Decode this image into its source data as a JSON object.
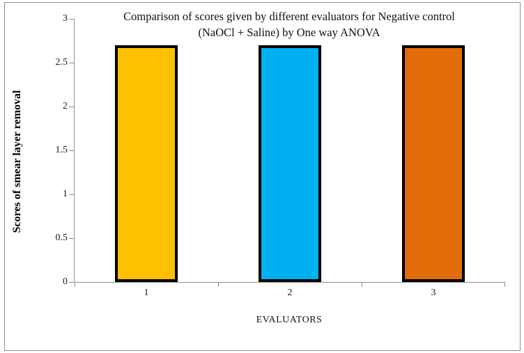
{
  "chart": {
    "title_lines": [
      "Comparison of scores given by different evaluators for Negative control",
      "(NaOCl + Saline) by One way ANOVA"
    ]
  },
  "chart_data": {
    "type": "bar",
    "title": "Comparison of scores given by different evaluators for Negative control (NaOCl + Saline) by One way ANOVA",
    "categories": [
      "1",
      "2",
      "3"
    ],
    "values": [
      2.7,
      2.7,
      2.7
    ],
    "bar_colors": [
      "#FFC000",
      "#00B0F0",
      "#E36C0A"
    ],
    "bar_border_color": "#000000",
    "xlabel": "EVALUATORS",
    "ylabel": "Scores of smear layer removal",
    "ylim": [
      0,
      3
    ],
    "yticks": [
      0,
      0.5,
      1,
      1.5,
      2,
      2.5,
      3
    ],
    "grid": false,
    "legend": "none",
    "axis_color": "#8E8E8E"
  }
}
